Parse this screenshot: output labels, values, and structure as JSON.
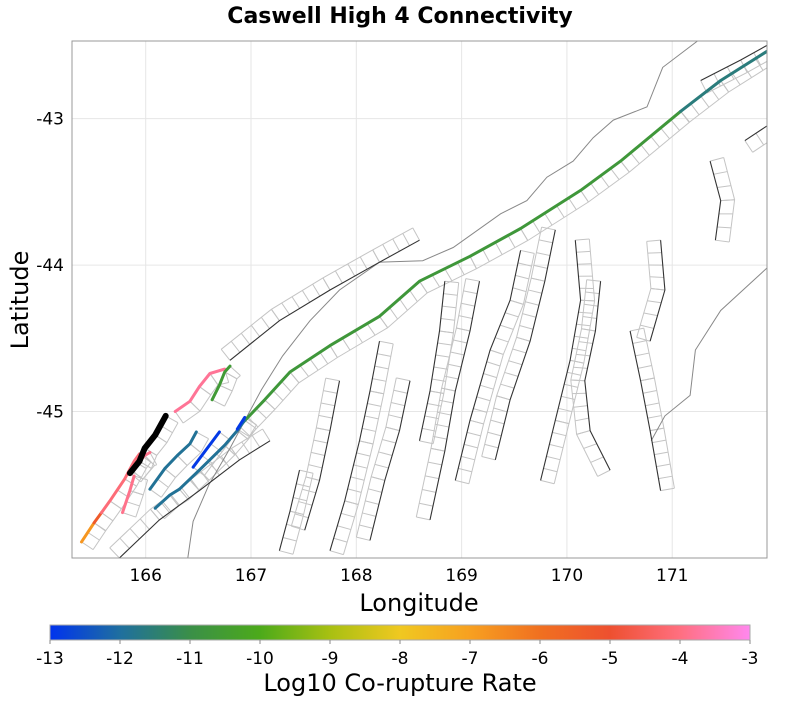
{
  "chart_data": {
    "type": "map",
    "title": "Caswell High 4 Connectivity",
    "xlabel": "Longitude",
    "ylabel": "Latitude",
    "xlim": [
      165.3,
      171.9
    ],
    "ylim": [
      -46.0,
      -42.47
    ],
    "xticks": [
      166,
      167,
      168,
      169,
      170,
      171
    ],
    "yticks": [
      -43,
      -44,
      -45
    ],
    "grid": true,
    "colorbar": {
      "label": "Log10 Co-rupture Rate",
      "range": [
        -13,
        -3
      ],
      "ticks": [
        -13,
        -12,
        -11,
        -10,
        -9,
        -8,
        -7,
        -6,
        -5,
        -4,
        -3
      ],
      "stops": [
        {
          "v": -13,
          "color": "#0033ee"
        },
        {
          "v": -12,
          "color": "#1f6f9f"
        },
        {
          "v": -11,
          "color": "#3a8f48"
        },
        {
          "v": -10,
          "color": "#4caa1a"
        },
        {
          "v": -9,
          "color": "#a8c012"
        },
        {
          "v": -8,
          "color": "#f0c820"
        },
        {
          "v": -7,
          "color": "#f7a020"
        },
        {
          "v": -6,
          "color": "#f07020"
        },
        {
          "v": -5,
          "color": "#ee5030"
        },
        {
          "v": -4,
          "color": "#ff6f80"
        },
        {
          "v": -3,
          "color": "#ff88ee"
        }
      ],
      "placement": "bottom"
    },
    "coastlines": [
      [
        [
          171.24,
          -42.47
        ],
        [
          170.91,
          -42.65
        ],
        [
          170.76,
          -42.92
        ],
        [
          170.44,
          -43.01
        ],
        [
          170.25,
          -43.13
        ],
        [
          170.06,
          -43.29
        ],
        [
          169.81,
          -43.4
        ],
        [
          169.62,
          -43.56
        ],
        [
          169.37,
          -43.65
        ],
        [
          168.92,
          -43.88
        ],
        [
          168.63,
          -43.97
        ],
        [
          168.22,
          -43.98
        ],
        [
          167.84,
          -44.17
        ],
        [
          167.56,
          -44.38
        ],
        [
          167.3,
          -44.62
        ],
        [
          167.1,
          -44.85
        ],
        [
          166.95,
          -45.05
        ],
        [
          166.8,
          -45.25
        ],
        [
          166.6,
          -45.5
        ],
        [
          166.45,
          -45.75
        ],
        [
          166.4,
          -46.0
        ]
      ],
      [
        [
          171.9,
          -44.02
        ],
        [
          171.46,
          -44.31
        ],
        [
          171.22,
          -44.58
        ],
        [
          171.17,
          -44.89
        ],
        [
          170.93,
          -45.03
        ],
        [
          170.8,
          -45.2
        ]
      ]
    ],
    "fault_traces": [
      [
        [
          168.84,
          -44.11
        ],
        [
          168.79,
          -44.45
        ],
        [
          168.7,
          -44.86
        ],
        [
          168.6,
          -45.2
        ]
      ],
      [
        [
          169.17,
          -44.11
        ],
        [
          169.08,
          -44.45
        ],
        [
          168.94,
          -44.86
        ],
        [
          168.84,
          -45.27
        ],
        [
          168.7,
          -45.74
        ]
      ],
      [
        [
          169.56,
          -43.9
        ],
        [
          169.46,
          -44.24
        ],
        [
          169.27,
          -44.58
        ],
        [
          169.08,
          -45.06
        ],
        [
          168.94,
          -45.47
        ]
      ],
      [
        [
          169.89,
          -43.76
        ],
        [
          169.79,
          -44.11
        ],
        [
          169.65,
          -44.52
        ],
        [
          169.46,
          -44.92
        ],
        [
          169.32,
          -45.33
        ]
      ],
      [
        [
          170.08,
          -43.83
        ],
        [
          170.13,
          -44.24
        ],
        [
          170.03,
          -44.65
        ],
        [
          169.89,
          -45.06
        ],
        [
          169.75,
          -45.47
        ]
      ],
      [
        [
          170.32,
          -44.11
        ],
        [
          170.27,
          -44.45
        ],
        [
          170.17,
          -44.79
        ],
        [
          170.22,
          -45.13
        ],
        [
          170.41,
          -45.4
        ]
      ],
      [
        [
          170.6,
          -44.45
        ],
        [
          170.7,
          -44.79
        ],
        [
          170.79,
          -45.13
        ],
        [
          170.89,
          -45.54
        ]
      ],
      [
        [
          170.89,
          -43.83
        ],
        [
          170.93,
          -44.17
        ],
        [
          170.79,
          -44.52
        ]
      ],
      [
        [
          168.22,
          -44.52
        ],
        [
          168.13,
          -44.86
        ],
        [
          168.03,
          -45.2
        ],
        [
          167.89,
          -45.61
        ],
        [
          167.75,
          -45.95
        ]
      ],
      [
        [
          168.51,
          -44.79
        ],
        [
          168.41,
          -45.13
        ],
        [
          168.27,
          -45.47
        ],
        [
          168.13,
          -45.88
        ]
      ],
      [
        [
          167.46,
          -45.4
        ],
        [
          167.37,
          -45.68
        ],
        [
          167.27,
          -45.95
        ]
      ],
      [
        [
          167.84,
          -44.79
        ],
        [
          167.75,
          -45.13
        ],
        [
          167.65,
          -45.47
        ],
        [
          167.51,
          -45.81
        ]
      ],
      [
        [
          166.8,
          -44.65
        ],
        [
          167.27,
          -44.38
        ],
        [
          167.75,
          -44.17
        ],
        [
          168.22,
          -43.98
        ],
        [
          168.6,
          -43.83
        ]
      ],
      [
        [
          171.27,
          -42.74
        ],
        [
          171.65,
          -42.6
        ],
        [
          171.9,
          -42.5
        ]
      ],
      [
        [
          171.36,
          -43.29
        ],
        [
          171.46,
          -43.56
        ],
        [
          171.41,
          -43.83
        ]
      ],
      [
        [
          171.69,
          -43.15
        ],
        [
          171.9,
          -43.05
        ]
      ],
      [
        [
          165.75,
          -46.0
        ],
        [
          166.13,
          -45.74
        ],
        [
          166.51,
          -45.54
        ],
        [
          166.89,
          -45.33
        ],
        [
          167.18,
          -45.2
        ]
      ]
    ],
    "source_fault": [
      [
        165.85,
        -45.42
      ],
      [
        165.94,
        -45.34
      ],
      [
        165.99,
        -45.25
      ],
      [
        166.09,
        -45.16
      ],
      [
        166.19,
        -45.03
      ]
    ],
    "coruptures": [
      {
        "name": "alpine-fault-south",
        "log_rate": -10.7,
        "points": [
          [
            166.89,
            -45.1
          ],
          [
            167.13,
            -44.92
          ],
          [
            167.37,
            -44.73
          ],
          [
            167.75,
            -44.55
          ],
          [
            168.22,
            -44.35
          ],
          [
            168.6,
            -44.11
          ],
          [
            169.08,
            -43.94
          ],
          [
            169.56,
            -43.75
          ],
          [
            170.13,
            -43.49
          ],
          [
            170.51,
            -43.29
          ],
          [
            171.08,
            -42.95
          ]
        ]
      },
      {
        "name": "alpine-fault-north",
        "log_rate": -11.6,
        "points": [
          [
            171.08,
            -42.95
          ],
          [
            171.46,
            -42.74
          ],
          [
            171.9,
            -42.54
          ]
        ]
      },
      {
        "name": "coastal-pink-north",
        "log_rate": -3.8,
        "points": [
          [
            166.28,
            -45.0
          ],
          [
            166.42,
            -44.93
          ],
          [
            166.51,
            -44.83
          ],
          [
            166.61,
            -44.74
          ],
          [
            166.75,
            -44.71
          ]
        ]
      },
      {
        "name": "green-short",
        "log_rate": -10.6,
        "points": [
          [
            166.63,
            -44.92
          ],
          [
            166.7,
            -44.82
          ],
          [
            166.75,
            -44.73
          ],
          [
            166.8,
            -44.69
          ]
        ]
      },
      {
        "name": "coastal-orange",
        "log_rate": -6.8,
        "points": [
          [
            165.39,
            -45.89
          ],
          [
            165.51,
            -45.76
          ]
        ]
      },
      {
        "name": "coastal-red",
        "log_rate": -5.3,
        "points": [
          [
            165.51,
            -45.76
          ],
          [
            165.58,
            -45.69
          ]
        ]
      },
      {
        "name": "coastal-pink-south",
        "log_rate": -4.1,
        "points": [
          [
            165.58,
            -45.69
          ],
          [
            165.66,
            -45.61
          ],
          [
            165.8,
            -45.46
          ],
          [
            165.89,
            -45.34
          ],
          [
            165.94,
            -45.29
          ]
        ]
      },
      {
        "name": "pink-short-a",
        "log_rate": -3.9,
        "points": [
          [
            165.78,
            -45.69
          ],
          [
            165.85,
            -45.54
          ],
          [
            165.89,
            -45.44
          ]
        ]
      },
      {
        "name": "pink-short-b",
        "log_rate": -3.9,
        "points": [
          [
            165.87,
            -45.4
          ],
          [
            165.99,
            -45.3
          ],
          [
            166.04,
            -45.28
          ]
        ]
      },
      {
        "name": "teal-1",
        "log_rate": -11.9,
        "points": [
          [
            166.04,
            -45.53
          ],
          [
            166.18,
            -45.39
          ],
          [
            166.3,
            -45.3
          ],
          [
            166.42,
            -45.22
          ],
          [
            166.48,
            -45.14
          ]
        ]
      },
      {
        "name": "teal-2",
        "log_rate": -11.9,
        "points": [
          [
            166.09,
            -45.66
          ],
          [
            166.23,
            -45.57
          ],
          [
            166.32,
            -45.53
          ],
          [
            166.51,
            -45.4
          ],
          [
            166.75,
            -45.23
          ],
          [
            166.87,
            -45.13
          ],
          [
            166.94,
            -45.06
          ]
        ]
      },
      {
        "name": "blue-1",
        "log_rate": -12.9,
        "points": [
          [
            166.45,
            -45.38
          ],
          [
            166.7,
            -45.14
          ]
        ]
      },
      {
        "name": "blue-2",
        "log_rate": -12.9,
        "points": [
          [
            166.87,
            -45.12
          ],
          [
            166.94,
            -45.04
          ]
        ]
      }
    ]
  }
}
